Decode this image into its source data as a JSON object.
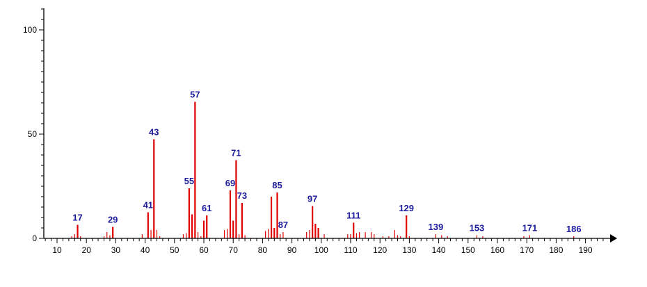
{
  "chart_data": {
    "type": "bar",
    "title": "",
    "xlabel": "",
    "ylabel": "",
    "xlim": [
      5,
      200
    ],
    "ylim": [
      0,
      110
    ],
    "grid": false,
    "x_ticks": [
      10,
      20,
      30,
      40,
      50,
      60,
      70,
      80,
      90,
      100,
      110,
      120,
      130,
      140,
      150,
      160,
      170,
      180,
      190
    ],
    "y_ticks": [
      0,
      50,
      100
    ],
    "colors": {
      "bar": "#e00000",
      "label": "#1c1c9c",
      "axis": "#000000"
    },
    "peaks": [
      {
        "x": 15,
        "y": 1
      },
      {
        "x": 16,
        "y": 2
      },
      {
        "x": 17,
        "y": 6.5
      },
      {
        "x": 18,
        "y": 1
      },
      {
        "x": 26,
        "y": 1
      },
      {
        "x": 27,
        "y": 3
      },
      {
        "x": 28,
        "y": 1.5
      },
      {
        "x": 29,
        "y": 5.5
      },
      {
        "x": 39,
        "y": 2
      },
      {
        "x": 41,
        "y": 12.5
      },
      {
        "x": 42,
        "y": 4
      },
      {
        "x": 43,
        "y": 47.5
      },
      {
        "x": 44,
        "y": 4
      },
      {
        "x": 45,
        "y": 1
      },
      {
        "x": 53,
        "y": 2
      },
      {
        "x": 54,
        "y": 2.5
      },
      {
        "x": 55,
        "y": 24
      },
      {
        "x": 56,
        "y": 11.5
      },
      {
        "x": 57,
        "y": 65.5
      },
      {
        "x": 58,
        "y": 3
      },
      {
        "x": 59,
        "y": 1
      },
      {
        "x": 60,
        "y": 8.5
      },
      {
        "x": 61,
        "y": 11
      },
      {
        "x": 67,
        "y": 4
      },
      {
        "x": 68,
        "y": 4.5
      },
      {
        "x": 69,
        "y": 23
      },
      {
        "x": 70,
        "y": 8.5
      },
      {
        "x": 71,
        "y": 37.5
      },
      {
        "x": 72,
        "y": 2
      },
      {
        "x": 73,
        "y": 17
      },
      {
        "x": 74,
        "y": 1.5
      },
      {
        "x": 81,
        "y": 3.5
      },
      {
        "x": 82,
        "y": 4.5
      },
      {
        "x": 83,
        "y": 20
      },
      {
        "x": 84,
        "y": 5
      },
      {
        "x": 85,
        "y": 22
      },
      {
        "x": 86,
        "y": 2
      },
      {
        "x": 87,
        "y": 3
      },
      {
        "x": 95,
        "y": 3
      },
      {
        "x": 96,
        "y": 4
      },
      {
        "x": 97,
        "y": 15.5
      },
      {
        "x": 98,
        "y": 7
      },
      {
        "x": 99,
        "y": 5
      },
      {
        "x": 101,
        "y": 2
      },
      {
        "x": 109,
        "y": 2
      },
      {
        "x": 110,
        "y": 2
      },
      {
        "x": 111,
        "y": 7.5
      },
      {
        "x": 112,
        "y": 2.5
      },
      {
        "x": 113,
        "y": 3
      },
      {
        "x": 115,
        "y": 3
      },
      {
        "x": 117,
        "y": 3
      },
      {
        "x": 118,
        "y": 2
      },
      {
        "x": 121,
        "y": 1
      },
      {
        "x": 123,
        "y": 1
      },
      {
        "x": 125,
        "y": 4
      },
      {
        "x": 126,
        "y": 1.5
      },
      {
        "x": 127,
        "y": 1
      },
      {
        "x": 129,
        "y": 11
      },
      {
        "x": 130,
        "y": 1
      },
      {
        "x": 139,
        "y": 2
      },
      {
        "x": 141,
        "y": 1.5
      },
      {
        "x": 143,
        "y": 1
      },
      {
        "x": 153,
        "y": 1.5
      },
      {
        "x": 155,
        "y": 1
      },
      {
        "x": 169,
        "y": 1
      },
      {
        "x": 171,
        "y": 1.5
      },
      {
        "x": 186,
        "y": 1
      }
    ],
    "peak_labels": [
      "17",
      "29",
      "41",
      "43",
      "55",
      "57",
      "61",
      "69",
      "71",
      "73",
      "85",
      "87",
      "97",
      "111",
      "129",
      "139",
      "153",
      "171",
      "186"
    ]
  }
}
